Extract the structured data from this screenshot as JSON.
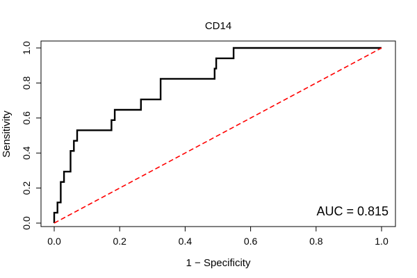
{
  "chart_data": {
    "type": "line",
    "title": "CD14",
    "xlabel": "1 − Specificity",
    "ylabel": "Sensitivity",
    "xlim": [
      0.0,
      1.0
    ],
    "ylim": [
      0.0,
      1.0
    ],
    "x_ticks": [
      0.0,
      0.2,
      0.4,
      0.6,
      0.8,
      1.0
    ],
    "y_ticks": [
      0.0,
      0.2,
      0.4,
      0.6,
      0.8,
      1.0
    ],
    "x_tick_labels": [
      "0.0",
      "0.2",
      "0.4",
      "0.6",
      "0.8",
      "1.0"
    ],
    "y_tick_labels": [
      "0.0",
      "0.2",
      "0.4",
      "0.6",
      "0.8",
      "1.0"
    ],
    "grid": false,
    "annotation": "AUC = 0.815",
    "series": [
      {
        "name": "ROC curve",
        "color": "#000000",
        "x": [
          0.0,
          0.0,
          0.01,
          0.01,
          0.02,
          0.02,
          0.03,
          0.03,
          0.04,
          0.05,
          0.05,
          0.06,
          0.06,
          0.07,
          0.07,
          0.17,
          0.175,
          0.175,
          0.185,
          0.185,
          0.265,
          0.265,
          0.325,
          0.325,
          0.49,
          0.49,
          0.495,
          0.495,
          0.548,
          0.548,
          1.0
        ],
        "y": [
          0.0,
          0.059,
          0.059,
          0.118,
          0.118,
          0.235,
          0.235,
          0.294,
          0.294,
          0.294,
          0.412,
          0.412,
          0.47,
          0.47,
          0.53,
          0.53,
          0.53,
          0.588,
          0.588,
          0.647,
          0.647,
          0.706,
          0.706,
          0.824,
          0.824,
          0.882,
          0.882,
          0.941,
          0.941,
          1.0,
          1.0
        ]
      },
      {
        "name": "reference",
        "color": "#ff0000",
        "style": "dashed",
        "x": [
          0.0,
          1.0
        ],
        "y": [
          0.0,
          1.0
        ]
      }
    ]
  }
}
